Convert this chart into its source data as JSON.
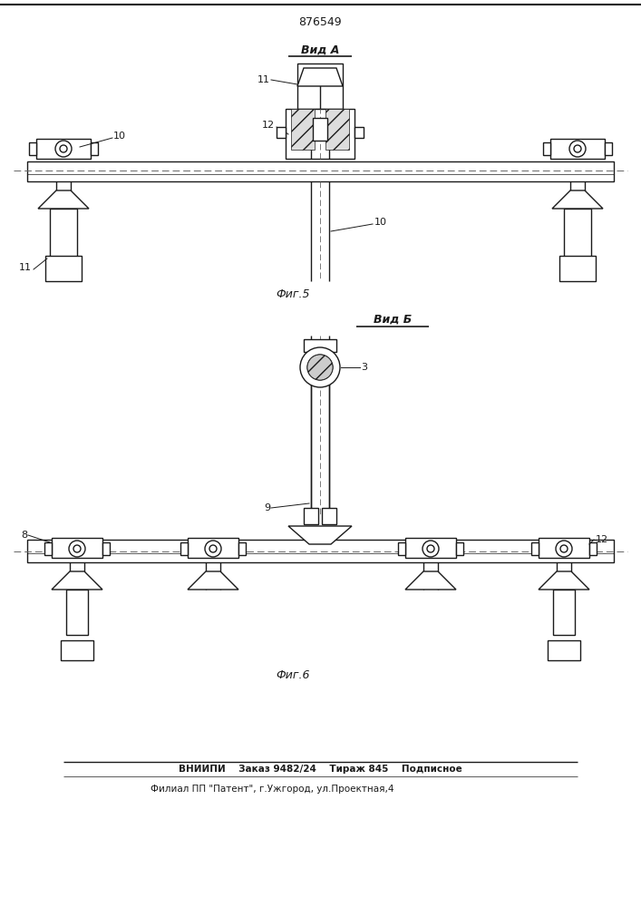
{
  "title": "876549",
  "view_a_label": "Вид А",
  "view_b_label": "Вид Б",
  "fig5_label": "Фиг.5",
  "fig6_label": "Фиг.6",
  "footer_line1": "ВНИИПИ    Заказ 9482/24    Тираж 845    Подписное",
  "footer_line2": "Филиал ПП \"Патент\", г.Ужгород, ул.Проектная,4",
  "bg_color": "#ffffff",
  "line_color": "#1a1a1a",
  "hatch_color": "#555555"
}
